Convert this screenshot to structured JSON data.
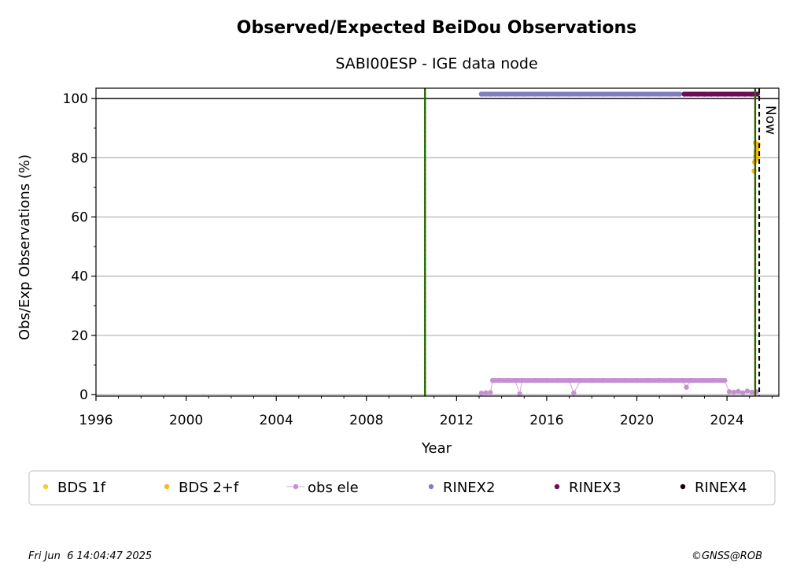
{
  "footer": {
    "timestamp": "Fri Jun  6 14:04:47 2025",
    "credit": "©GNSS@ROB"
  },
  "chart_data": {
    "type": "scatter",
    "title": "Observed/Expected BeiDou Observations",
    "subtitle": "SABI00ESP - IGE data node",
    "xlabel": "Year",
    "ylabel": "Obs/Exp Observations (%)",
    "xlim": [
      1996,
      2026.3
    ],
    "ylim": [
      -0.5,
      103.5
    ],
    "x_ticks": [
      "1996",
      "2000",
      "2004",
      "2008",
      "2012",
      "2016",
      "2020",
      "2024"
    ],
    "y_ticks": [
      "0",
      "20",
      "40",
      "60",
      "80",
      "100"
    ],
    "grid": "horizontal",
    "reference_line_y": 100,
    "now_label": "Now",
    "vertical_lines": [
      {
        "x": 2010.6,
        "colors": [
          "#008000",
          "#cc0000"
        ],
        "style": "dashed"
      },
      {
        "x": 2025.25,
        "colors": [
          "#008000",
          "#cc0000"
        ],
        "style": "dashed"
      },
      {
        "x": 2025.43,
        "colors": [
          "#000000"
        ],
        "style": "dashed"
      }
    ],
    "legend_position": "below",
    "series": [
      {
        "name": "BDS 1f",
        "color": "#f5c842",
        "marker": "dot",
        "points": []
      },
      {
        "name": "BDS 2+f",
        "color": "#fbb917",
        "marker": "dot",
        "points": [
          [
            2025.2,
            75.5
          ],
          [
            2025.25,
            79
          ],
          [
            2025.27,
            80.5
          ],
          [
            2025.3,
            81.5
          ],
          [
            2025.32,
            82.5
          ],
          [
            2025.35,
            83.5
          ],
          [
            2025.38,
            84.5
          ],
          [
            2025.22,
            78.5
          ],
          [
            2025.28,
            82
          ],
          [
            2025.33,
            84
          ],
          [
            2025.26,
            85
          ],
          [
            2025.36,
            80
          ]
        ]
      },
      {
        "name": "obs ele",
        "color": "#c490d1",
        "marker": "dot-line",
        "points": [
          [
            2013.1,
            0.5
          ],
          [
            2013.3,
            0.6
          ],
          [
            2013.5,
            0.7
          ],
          [
            2013.6,
            4.8
          ],
          [
            2013.9,
            4.8
          ],
          [
            2014.3,
            4.8
          ],
          [
            2014.6,
            4.8
          ],
          [
            2014.8,
            0.2
          ],
          [
            2014.9,
            4.8
          ],
          [
            2015.5,
            4.8
          ],
          [
            2016.0,
            4.8
          ],
          [
            2016.5,
            4.8
          ],
          [
            2017.0,
            4.8
          ],
          [
            2017.2,
            0.5
          ],
          [
            2017.5,
            4.8
          ],
          [
            2018.0,
            4.8
          ],
          [
            2018.5,
            4.8
          ],
          [
            2019.0,
            4.8
          ],
          [
            2019.5,
            4.8
          ],
          [
            2020.0,
            4.8
          ],
          [
            2020.5,
            4.8
          ],
          [
            2021.0,
            4.8
          ],
          [
            2021.5,
            4.8
          ],
          [
            2022.0,
            4.8
          ],
          [
            2022.2,
            2.5
          ],
          [
            2022.4,
            4.8
          ],
          [
            2022.9,
            4.8
          ],
          [
            2023.4,
            4.8
          ],
          [
            2023.9,
            4.8
          ],
          [
            2024.1,
            1.0
          ],
          [
            2024.3,
            0.8
          ],
          [
            2024.5,
            1.1
          ],
          [
            2024.7,
            0.6
          ],
          [
            2024.9,
            1.2
          ],
          [
            2025.1,
            0.8
          ],
          [
            2025.3,
            1.0
          ]
        ]
      },
      {
        "name": "RINEX2",
        "color": "#7f7fbf",
        "marker": "dot",
        "points": [
          [
            2013.1,
            101.5
          ],
          [
            2013.3,
            101.5
          ],
          [
            2013.5,
            101.5
          ],
          [
            2013.7,
            101.5
          ],
          [
            2013.9,
            101.5
          ],
          [
            2014.2,
            101.5
          ],
          [
            2014.6,
            101.5
          ],
          [
            2015.0,
            101.5
          ],
          [
            2015.5,
            101.5
          ],
          [
            2016.0,
            101.5
          ],
          [
            2016.5,
            101.5
          ],
          [
            2017.0,
            101.5
          ],
          [
            2017.5,
            101.5
          ],
          [
            2018.0,
            101.5
          ],
          [
            2018.5,
            101.5
          ],
          [
            2019.0,
            101.5
          ],
          [
            2019.5,
            101.5
          ],
          [
            2020.0,
            101.5
          ],
          [
            2020.5,
            101.5
          ],
          [
            2021.0,
            101.5
          ],
          [
            2021.5,
            101.5
          ],
          [
            2021.9,
            101.5
          ]
        ]
      },
      {
        "name": "RINEX3",
        "color": "#6b0d5a",
        "marker": "dot",
        "points": [
          [
            2022.1,
            101.5
          ],
          [
            2022.4,
            101.5
          ],
          [
            2022.7,
            101.5
          ],
          [
            2023.0,
            101.5
          ],
          [
            2023.3,
            101.5
          ],
          [
            2023.6,
            101.5
          ],
          [
            2023.9,
            101.5
          ],
          [
            2024.2,
            101.5
          ],
          [
            2024.5,
            101.5
          ],
          [
            2024.8,
            101.5
          ],
          [
            2025.1,
            101.5
          ],
          [
            2025.35,
            101.5
          ]
        ]
      },
      {
        "name": "RINEX4",
        "color": "#1a0014",
        "marker": "dot",
        "points": []
      }
    ]
  }
}
